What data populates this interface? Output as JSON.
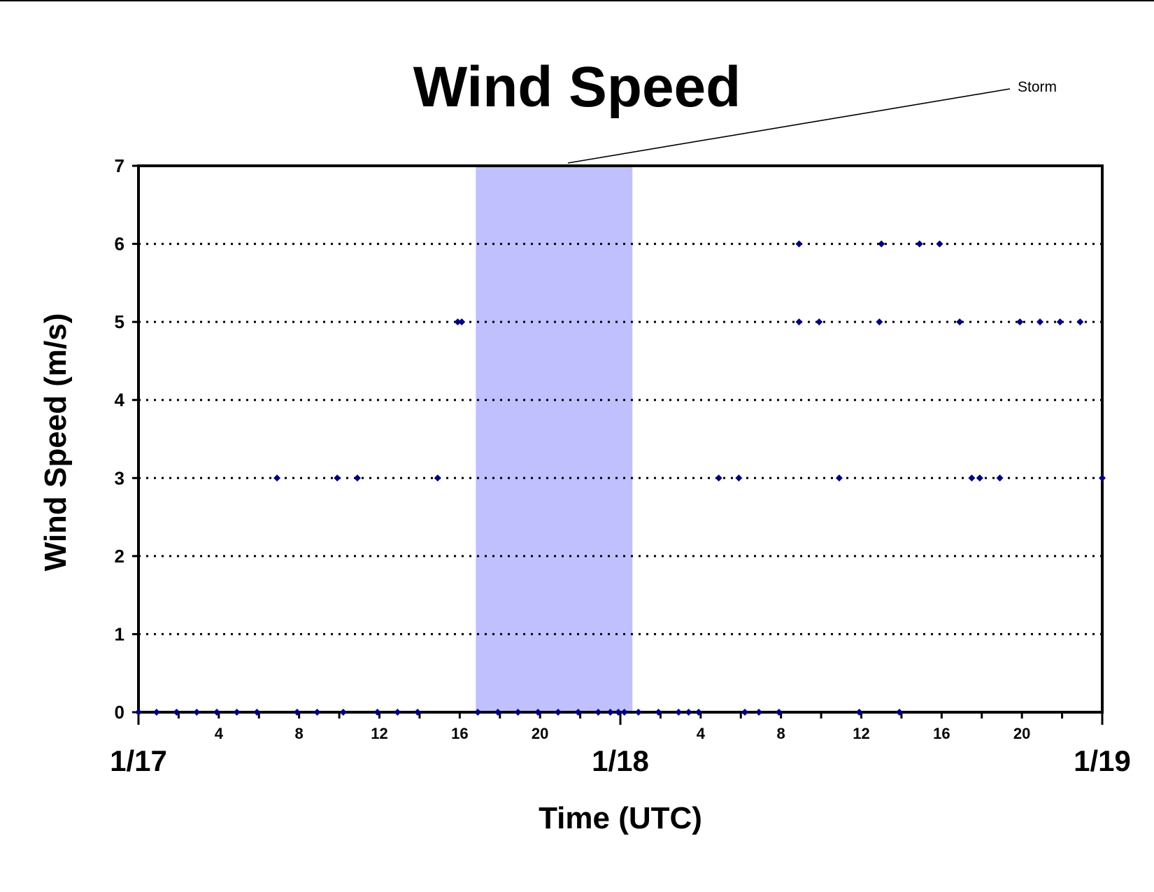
{
  "chart_data": {
    "type": "scatter",
    "title": "Wind Speed",
    "xlabel": "Time (UTC)",
    "ylabel": "Wind Speed (m/s)",
    "ylim": [
      0,
      7
    ],
    "yticks": [
      "0",
      "1",
      "2",
      "3",
      "4",
      "5",
      "6",
      "7"
    ],
    "xlim": [
      "1/17 00:00",
      "1/19 00:00"
    ],
    "hour_ticks": [
      {
        "at": "1/17 04:00",
        "label": "4"
      },
      {
        "at": "1/17 08:00",
        "label": "8"
      },
      {
        "at": "1/17 12:00",
        "label": "12"
      },
      {
        "at": "1/17 16:00",
        "label": "16"
      },
      {
        "at": "1/17 20:00",
        "label": "20"
      },
      {
        "at": "1/18 04:00",
        "label": "4"
      },
      {
        "at": "1/18 08:00",
        "label": "8"
      },
      {
        "at": "1/18 12:00",
        "label": "12"
      },
      {
        "at": "1/18 16:00",
        "label": "16"
      },
      {
        "at": "1/18 20:00",
        "label": "20"
      }
    ],
    "date_ticks": [
      {
        "at": "1/17 00:00",
        "label": "1/17"
      },
      {
        "at": "1/18 00:00",
        "label": "1/18"
      },
      {
        "at": "1/19 00:00",
        "label": "1/19"
      }
    ],
    "grid": "horizontal dotted",
    "marker_color": "#00007f",
    "shaded_region": {
      "start": "1/17 16:48",
      "end": "1/18 00:36",
      "color": "#c0c0ff",
      "annotation": "Storm"
    },
    "series": [
      {
        "points": [
          {
            "x": "1/17 00:00",
            "y": 0
          },
          {
            "x": "1/17 00:54",
            "y": 0
          },
          {
            "x": "1/17 01:54",
            "y": 0
          },
          {
            "x": "1/17 02:54",
            "y": 0
          },
          {
            "x": "1/17 03:54",
            "y": 0
          },
          {
            "x": "1/17 04:54",
            "y": 0
          },
          {
            "x": "1/17 05:54",
            "y": 0
          },
          {
            "x": "1/17 06:54",
            "y": 3
          },
          {
            "x": "1/17 07:54",
            "y": 0
          },
          {
            "x": "1/17 08:54",
            "y": 0
          },
          {
            "x": "1/17 09:54",
            "y": 3
          },
          {
            "x": "1/17 10:12",
            "y": 0
          },
          {
            "x": "1/17 10:54",
            "y": 3
          },
          {
            "x": "1/17 11:54",
            "y": 0
          },
          {
            "x": "1/17 12:54",
            "y": 0
          },
          {
            "x": "1/17 13:54",
            "y": 0
          },
          {
            "x": "1/17 14:54",
            "y": 3
          },
          {
            "x": "1/17 15:54",
            "y": 5
          },
          {
            "x": "1/17 16:06",
            "y": 5
          },
          {
            "x": "1/17 16:54",
            "y": 0
          },
          {
            "x": "1/17 17:54",
            "y": 0
          },
          {
            "x": "1/17 18:54",
            "y": 0
          },
          {
            "x": "1/17 19:54",
            "y": 0
          },
          {
            "x": "1/17 20:54",
            "y": 0
          },
          {
            "x": "1/17 21:54",
            "y": 0
          },
          {
            "x": "1/17 22:54",
            "y": 0
          },
          {
            "x": "1/17 23:30",
            "y": 0
          },
          {
            "x": "1/17 23:54",
            "y": 0
          },
          {
            "x": "1/18 00:12",
            "y": 0
          },
          {
            "x": "1/18 00:54",
            "y": 0
          },
          {
            "x": "1/18 01:54",
            "y": 0
          },
          {
            "x": "1/18 02:54",
            "y": 0
          },
          {
            "x": "1/18 03:24",
            "y": 0
          },
          {
            "x": "1/18 03:54",
            "y": 0
          },
          {
            "x": "1/18 04:54",
            "y": 3
          },
          {
            "x": "1/18 05:54",
            "y": 3
          },
          {
            "x": "1/18 06:12",
            "y": 0
          },
          {
            "x": "1/18 06:54",
            "y": 0
          },
          {
            "x": "1/18 07:54",
            "y": 0
          },
          {
            "x": "1/18 08:54",
            "y": 6
          },
          {
            "x": "1/18 08:54",
            "y": 5
          },
          {
            "x": "1/18 09:54",
            "y": 5
          },
          {
            "x": "1/18 10:54",
            "y": 3
          },
          {
            "x": "1/18 11:54",
            "y": 0
          },
          {
            "x": "1/18 12:54",
            "y": 5
          },
          {
            "x": "1/18 13:00",
            "y": 6
          },
          {
            "x": "1/18 13:54",
            "y": 0
          },
          {
            "x": "1/18 14:54",
            "y": 6
          },
          {
            "x": "1/18 15:54",
            "y": 6
          },
          {
            "x": "1/18 16:54",
            "y": 5
          },
          {
            "x": "1/18 17:30",
            "y": 3
          },
          {
            "x": "1/18 17:54",
            "y": 3
          },
          {
            "x": "1/18 18:54",
            "y": 3
          },
          {
            "x": "1/18 19:54",
            "y": 5
          },
          {
            "x": "1/18 20:54",
            "y": 5
          },
          {
            "x": "1/18 21:54",
            "y": 5
          },
          {
            "x": "1/18 22:54",
            "y": 5
          },
          {
            "x": "1/19 00:00",
            "y": 3
          }
        ]
      }
    ]
  }
}
